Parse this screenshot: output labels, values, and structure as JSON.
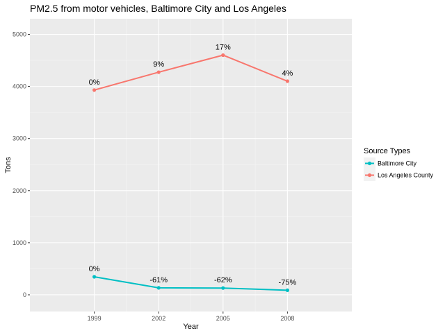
{
  "chart_data": {
    "type": "line",
    "title": "PM2.5 from motor vehicles, Baltimore City and Los Angeles",
    "xlabel": "Year",
    "ylabel": "Tons",
    "categories": [
      "1999",
      "2002",
      "2005",
      "2008"
    ],
    "yticks": [
      "0",
      "1000",
      "2000",
      "3000",
      "4000",
      "5000"
    ],
    "ylim": [
      -320,
      5300
    ],
    "grid": true,
    "legend": {
      "title": "Source Types",
      "placement": "right",
      "items": [
        "Baltimore City",
        "Los Angeles County"
      ]
    },
    "series": [
      {
        "name": "Baltimore City",
        "color": "#00BFC4",
        "values": [
          346,
          134,
          130,
          88
        ],
        "labels": [
          "0%",
          "-61%",
          "-62%",
          "-75%"
        ]
      },
      {
        "name": "Los Angeles County",
        "color": "#F8766D",
        "values": [
          3931,
          4274,
          4601,
          4101
        ],
        "labels": [
          "0%",
          "9%",
          "17%",
          "4%"
        ]
      }
    ]
  }
}
